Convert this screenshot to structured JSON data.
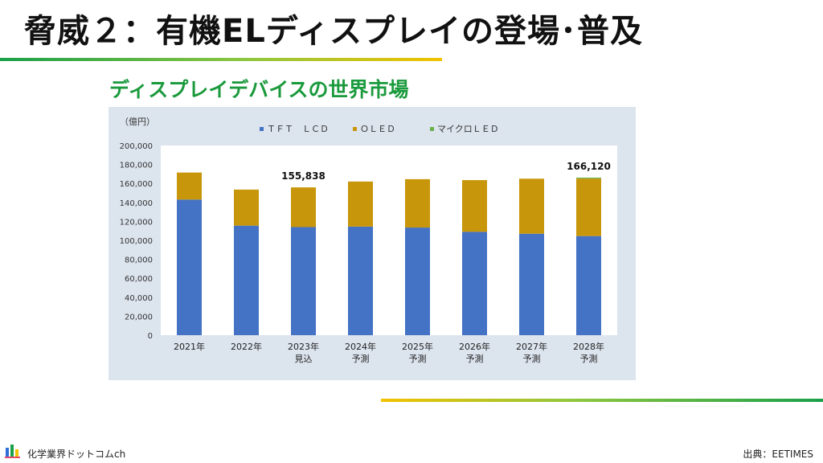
{
  "slide": {
    "title": "脅威２：有機ELディスプレイの登場･普及",
    "subtitle": "ディスプレイデバイスの世界市場",
    "footer_brand": "化学業界ドットコムch",
    "footer_source": "出典：EETIMES",
    "colors": {
      "accent_green": "#1a9a3c",
      "accent_yellow": "#f2c200"
    }
  },
  "chart_data": {
    "type": "bar",
    "stacked": true,
    "unit_label": "（億円）",
    "categories": [
      [
        "2021年"
      ],
      [
        "2022年"
      ],
      [
        "2023年",
        "見込"
      ],
      [
        "2024年",
        "予測"
      ],
      [
        "2025年",
        "予測"
      ],
      [
        "2026年",
        "予測"
      ],
      [
        "2027年",
        "予測"
      ],
      [
        "2028年",
        "予測"
      ]
    ],
    "series": [
      {
        "name": "ＴＦＴ　ＬＣＤ",
        "color": "#4472c4",
        "values": [
          143000,
          115500,
          114000,
          114500,
          113500,
          109000,
          107000,
          104500
        ]
      },
      {
        "name": "ＯＬＥＤ",
        "color": "#c8960a",
        "values": [
          28500,
          38000,
          41838,
          47500,
          51000,
          54500,
          58000,
          60620
        ]
      },
      {
        "name": "マイクロＬＥＤ",
        "color": "#6ab04c",
        "values": [
          0,
          0,
          0,
          0,
          0,
          0,
          0,
          1000
        ]
      }
    ],
    "ylim": [
      0,
      200000
    ],
    "yticks": [
      "0",
      "20,000",
      "40,000",
      "60,000",
      "80,000",
      "100,000",
      "120,000",
      "140,000",
      "160,000",
      "180,000",
      "200,000"
    ],
    "annotations": [
      {
        "category_index": 2,
        "text": "155,838"
      },
      {
        "category_index": 7,
        "text": "166,120"
      }
    ],
    "legend_position": "top",
    "grid": false
  }
}
